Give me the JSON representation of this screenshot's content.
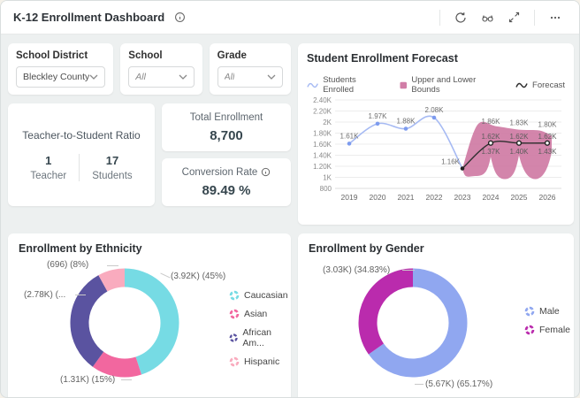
{
  "header": {
    "title": "K-12 Enrollment Dashboard",
    "toolbar_icons": [
      "refresh-icon",
      "preview-icon",
      "fullscreen-icon",
      "more-icon"
    ]
  },
  "filters": [
    {
      "label": "School District",
      "value": "Bleckley County",
      "italic": false
    },
    {
      "label": "School",
      "value": "All",
      "italic": true
    },
    {
      "label": "Grade",
      "value": "All",
      "italic": true
    }
  ],
  "stats": {
    "ratio": {
      "title": "Teacher-to-Student Ratio",
      "left_value": "1",
      "left_label": "Teacher",
      "right_value": "17",
      "right_label": "Students"
    },
    "total": {
      "title": "Total Enrollment",
      "value": "8,700"
    },
    "conversion": {
      "title": "Conversion Rate",
      "value": "89.49 %"
    }
  },
  "chart_data": [
    {
      "type": "line",
      "title": "Student Enrollment Forecast",
      "x": [
        "2019",
        "2020",
        "2021",
        "2022",
        "2023",
        "2024",
        "2025",
        "2026"
      ],
      "ylim": [
        800,
        2400
      ],
      "yticks": [
        "2.40K",
        "2.20K",
        "2K",
        "1.80K",
        "1.60K",
        "1.40K",
        "1.20K",
        "1K",
        "800"
      ],
      "grid": true,
      "legend_position": "top",
      "series": [
        {
          "name": "Students Enrolled",
          "color": "#a6baf3",
          "dot_color": "#7d9bee",
          "values": [
            1610,
            1970,
            1880,
            2080,
            1160,
            null,
            null,
            null
          ],
          "labels": [
            "1.61K",
            "1.97K",
            "1.88K",
            "2.08K",
            "1.16K",
            null,
            null,
            null
          ]
        },
        {
          "name": "Upper and Lower Bounds",
          "color": "#d17ea7",
          "upper": [
            null,
            null,
            null,
            null,
            1160,
            1860,
            1830,
            1800
          ],
          "lower": [
            null,
            null,
            null,
            null,
            1160,
            1370,
            1400,
            1430
          ],
          "upper_labels": [
            "1.86K",
            "1.83K",
            "1.80K"
          ],
          "lower_labels": [
            "1.37K",
            "1.40K",
            "1.43K"
          ]
        },
        {
          "name": "Forecast",
          "color": "#2f2f2f",
          "values": [
            null,
            null,
            null,
            null,
            1160,
            1620,
            1620,
            1620
          ],
          "labels": [
            null,
            null,
            null,
            null,
            null,
            "1.62K",
            "1.62K",
            "1.62K"
          ]
        }
      ]
    },
    {
      "type": "pie",
      "title": "Enrollment by Ethnicity",
      "slices": [
        {
          "label": "Caucasian",
          "value": 3920,
          "pct": 45,
          "color": "#76dbe4",
          "callout": "(3.92K) (45%)"
        },
        {
          "label": "Asian",
          "value": 1310,
          "pct": 15,
          "color": "#f2679f",
          "callout": "(1.31K) (15%)"
        },
        {
          "label": "African Am...",
          "value": 2780,
          "pct": 32,
          "color": "#5a53a0",
          "callout": "(2.78K) (..."
        },
        {
          "label": "Hispanic",
          "value": 696,
          "pct": 8,
          "color": "#f9abbe",
          "callout": "(696) (8%)"
        }
      ],
      "legend_position": "right"
    },
    {
      "type": "pie",
      "title": "Enrollment by Gender",
      "slices": [
        {
          "label": "Male",
          "value": 5670,
          "pct": 65.17,
          "color": "#90a7f0",
          "callout": "(5.67K) (65.17%)"
        },
        {
          "label": "Female",
          "value": 3030,
          "pct": 34.83,
          "color": "#ba2bad",
          "callout": "(3.03K) (34.83%)"
        }
      ],
      "legend_position": "right"
    }
  ]
}
